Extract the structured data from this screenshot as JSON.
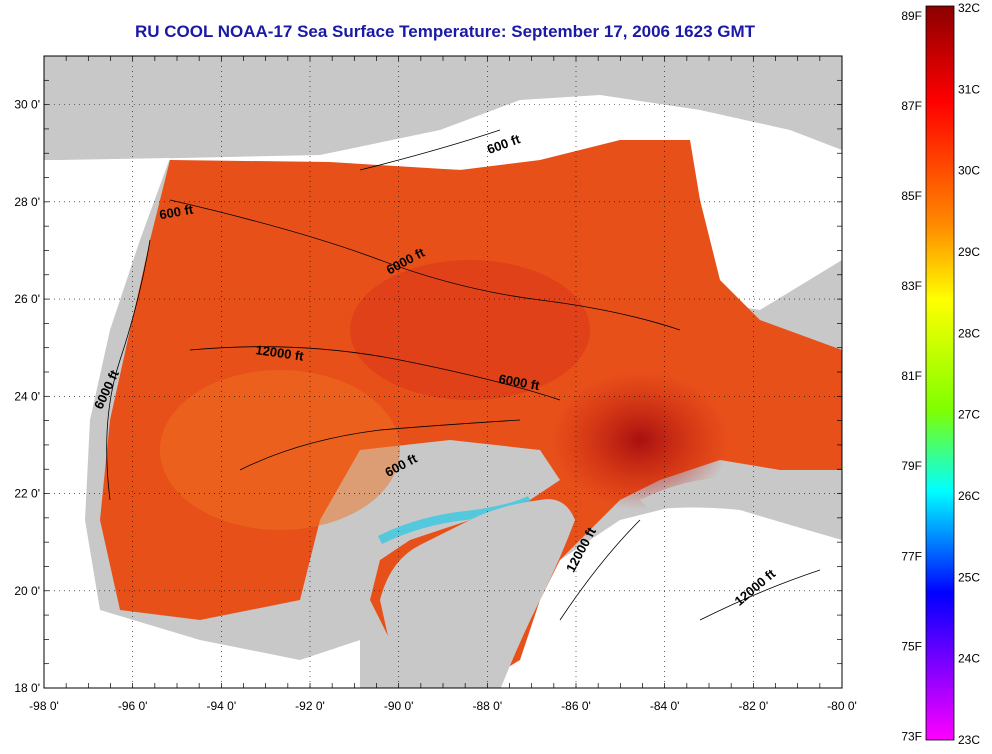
{
  "title": "RU COOL  NOAA-17  Sea Surface Temperature:  September 17, 2006 1623 GMT",
  "map": {
    "lon_ticks": [
      "-98 0'",
      "-96 0'",
      "-94 0'",
      "-92 0'",
      "-90 0'",
      "-88 0'",
      "-86 0'",
      "-84 0'",
      "-82 0'",
      "-80 0'"
    ],
    "lat_ticks": [
      "30 0'",
      "28 0'",
      "26 0'",
      "24 0'",
      "22 0'",
      "20 0'",
      "18 0'"
    ],
    "lon_range": [
      -98,
      -80
    ],
    "lat_range": [
      18,
      31
    ],
    "grid": true,
    "colors": {
      "land": "#c8c8c8",
      "cloud": "#ffffff",
      "sst_warm": "#e8401a",
      "sst_hot": "#a81010",
      "sst_cool": "#40c8e0"
    },
    "contour_labels": [
      {
        "text": "600 ft",
        "lon": -87.6,
        "lat": 29.1,
        "angle": -20
      },
      {
        "text": "600 ft",
        "lon": -95.0,
        "lat": 27.7,
        "angle": -10
      },
      {
        "text": "6000 ft",
        "lon": -89.8,
        "lat": 26.7,
        "angle": -28
      },
      {
        "text": "12000 ft",
        "lon": -92.7,
        "lat": 24.8,
        "angle": 8
      },
      {
        "text": "6000 ft",
        "lon": -87.3,
        "lat": 24.2,
        "angle": 10
      },
      {
        "text": "6000 ft",
        "lon": -96.5,
        "lat": 24.1,
        "angle": -65
      },
      {
        "text": "600 ft",
        "lon": -89.9,
        "lat": 22.5,
        "angle": -28
      },
      {
        "text": "12000 ft",
        "lon": -85.8,
        "lat": 20.8,
        "angle": -62
      },
      {
        "text": "12000 ft",
        "lon": -81.9,
        "lat": 20.0,
        "angle": -40
      }
    ]
  },
  "colorbar": {
    "fahrenheit_labels": [
      "89F",
      "87F",
      "85F",
      "83F",
      "81F",
      "79F",
      "77F",
      "75F",
      "73F"
    ],
    "celsius_labels": [
      "32C",
      "31C",
      "30C",
      "29C",
      "28C",
      "27C",
      "26C",
      "25C",
      "24C",
      "23C"
    ],
    "stops": [
      "#8b0000",
      "#ff0000",
      "#ff8c00",
      "#ffff00",
      "#7fff00",
      "#00ffff",
      "#0000ff",
      "#8000ff",
      "#ff00ff"
    ]
  }
}
